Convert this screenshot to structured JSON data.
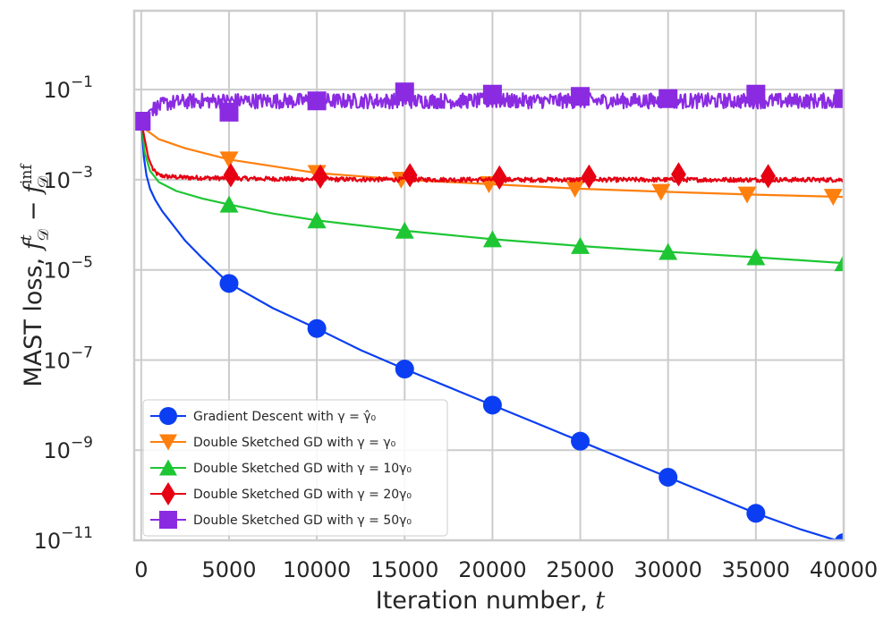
{
  "chart_data": {
    "type": "line",
    "xlabel": "Iteration number, t",
    "ylabel": "MAST loss, f_D^t − f_D^inf",
    "x_ticks": [
      "0",
      "5000",
      "10000",
      "15000",
      "20000",
      "25000",
      "30000",
      "35000",
      "40000"
    ],
    "y_ticks": [
      {
        "value": -1,
        "label": "10",
        "exp": "−1"
      },
      {
        "value": -3,
        "label": "10",
        "exp": "−3"
      },
      {
        "value": -5,
        "label": "10",
        "exp": "−5"
      },
      {
        "value": -7,
        "label": "10",
        "exp": "−7"
      },
      {
        "value": -9,
        "label": "10",
        "exp": "−9"
      },
      {
        "value": -11,
        "label": "10",
        "exp": "−11"
      }
    ],
    "xlim": [
      -400,
      40000
    ],
    "ylim_log10": [
      -11,
      0.75
    ],
    "yscale": "log",
    "grid": true,
    "legend_position": "lower-left",
    "series": [
      {
        "name": "Gradient Descent with γ = γ̂₀",
        "color": "#0b3ef2",
        "marker": "circle",
        "noise": 0,
        "x": [
          0,
          150,
          300,
          500,
          800,
          1200,
          1800,
          2500,
          3500,
          5000,
          7500,
          10000,
          12500,
          15000,
          17500,
          20000,
          22500,
          25000,
          27500,
          30000,
          32500,
          35000,
          37500,
          40000
        ],
        "log10_y": [
          -1.7,
          -2.5,
          -2.9,
          -3.2,
          -3.45,
          -3.7,
          -4.0,
          -4.35,
          -4.75,
          -5.3,
          -5.85,
          -6.3,
          -6.78,
          -7.2,
          -7.6,
          -8.0,
          -8.4,
          -8.8,
          -9.2,
          -9.6,
          -10.0,
          -10.4,
          -10.75,
          -11.05
        ],
        "marker_x": [
          5000,
          10000,
          15000,
          20000,
          25000,
          30000,
          35000,
          40000
        ],
        "marker_log10_y": [
          -5.3,
          -6.3,
          -7.2,
          -8.0,
          -8.8,
          -9.6,
          -10.4,
          -11.05
        ]
      },
      {
        "name": "Double Sketched GD with γ = γ₀",
        "color": "#ff7f0e",
        "marker": "triangle-down",
        "noise": 0,
        "x": [
          0,
          300,
          1000,
          2500,
          5000,
          7500,
          10000,
          15000,
          20000,
          25000,
          30000,
          35000,
          40000
        ],
        "log10_y": [
          -1.7,
          -1.9,
          -2.1,
          -2.3,
          -2.55,
          -2.7,
          -2.85,
          -3.0,
          -3.1,
          -3.2,
          -3.27,
          -3.33,
          -3.38
        ],
        "marker_x": [
          5000,
          10000,
          14800,
          19800,
          24700,
          29600,
          34500,
          39400
        ],
        "marker_log10_y": [
          -2.55,
          -2.85,
          -3.0,
          -3.1,
          -3.2,
          -3.27,
          -3.33,
          -3.38
        ]
      },
      {
        "name": "Double Sketched GD with γ = 10γ₀",
        "color": "#1ec634",
        "marker": "triangle-up",
        "noise": 0,
        "x": [
          0,
          200,
          500,
          1000,
          2000,
          3500,
          5000,
          7500,
          10000,
          15000,
          20000,
          25000,
          30000,
          35000,
          40000
        ],
        "log10_y": [
          -1.7,
          -2.4,
          -2.8,
          -3.05,
          -3.25,
          -3.42,
          -3.55,
          -3.75,
          -3.9,
          -4.13,
          -4.32,
          -4.47,
          -4.6,
          -4.72,
          -4.85
        ],
        "marker_x": [
          5000,
          10000,
          15000,
          20000,
          25000,
          30000,
          35000,
          40000
        ],
        "marker_log10_y": [
          -3.55,
          -3.9,
          -4.13,
          -4.32,
          -4.47,
          -4.6,
          -4.72,
          -4.85
        ]
      },
      {
        "name": "Double Sketched GD with γ = 20γ₀",
        "color": "#e60012",
        "marker": "diamond",
        "noise": 0.05,
        "x": [
          0,
          200,
          400,
          700,
          1000,
          1500,
          2500,
          5000,
          10000,
          20000,
          30000,
          40000
        ],
        "log10_y": [
          -1.7,
          -2.1,
          -2.5,
          -2.8,
          -2.9,
          -2.93,
          -2.95,
          -2.97,
          -2.99,
          -3.0,
          -3.0,
          -3.0
        ],
        "marker_x": [
          5100,
          10200,
          15300,
          20400,
          25500,
          30600,
          35700
        ],
        "marker_log10_y": [
          -2.9,
          -2.93,
          -2.9,
          -2.95,
          -2.93,
          -2.88,
          -2.92
        ]
      },
      {
        "name": "Double Sketched GD with γ = 50γ₀",
        "color": "#8a2be2",
        "marker": "square",
        "noise": 0.17,
        "x": [
          0,
          500,
          1500,
          3000,
          10000,
          20000,
          30000,
          40000
        ],
        "log10_y": [
          -1.7,
          -1.45,
          -1.3,
          -1.25,
          -1.25,
          -1.25,
          -1.25,
          -1.25
        ],
        "marker_x": [
          0,
          5000,
          10000,
          15000,
          20000,
          25000,
          30000,
          35000,
          40000
        ],
        "marker_log10_y": [
          -1.7,
          -1.5,
          -1.25,
          -1.05,
          -1.1,
          -1.15,
          -1.2,
          -1.1,
          -1.2
        ]
      }
    ]
  }
}
